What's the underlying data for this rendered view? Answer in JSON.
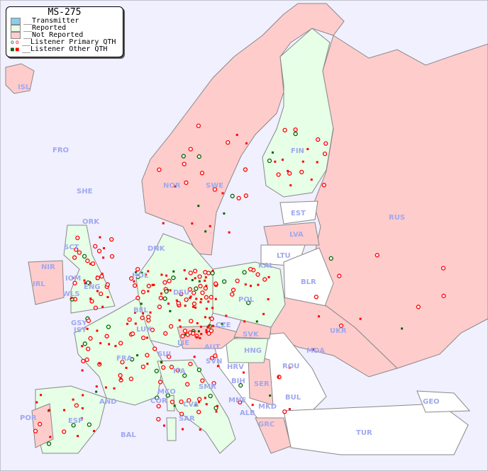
{
  "title": "MS-275",
  "legend": [
    {
      "label": "__Transmitter",
      "color": "#88ccee"
    },
    {
      "label": "__Reported",
      "color": "#e6ffe6"
    },
    {
      "label": "__Not Reported",
      "color": "#ffcccc"
    },
    {
      "label": "__Listener Primary QTH",
      "marker": "ring",
      "colors": [
        "#006600",
        "#ff0000"
      ]
    },
    {
      "label": "__Listener Other QTH",
      "marker": "square",
      "colors": [
        "#006600",
        "#ff0000"
      ]
    }
  ],
  "colors": {
    "sea": "#f0f0ff",
    "reported": "#e6ffe6",
    "not_reported": "#ffcccc",
    "other": "#ffffff",
    "border": "#888888",
    "label": "#a0a8ee"
  },
  "countries": {
    "ISL": "ISL",
    "FRO": "FRO",
    "SHE": "SHE",
    "ORK": "ORK",
    "NOR": "NOR",
    "SWE": "SWE",
    "FIN": "FIN",
    "RUS": "RUS",
    "EST": "EST",
    "LVA": "LVA",
    "LTU": "LTU",
    "KAL": "KAL",
    "BLR": "BLR",
    "UKR": "UKR",
    "DNK": "DNK",
    "SCT": "SCT",
    "NIR": "NIR",
    "IRL": "IRL",
    "IOM": "IOM",
    "WLS": "WLS",
    "ENG": "ENG",
    "HOL": "HOL",
    "BEL": "BEL",
    "LUX": "LUX",
    "DEU": "DEU",
    "POL": "POL",
    "CZE": "CZE",
    "SVK": "SVK",
    "GSY": "GSY",
    "JSY": "JSY",
    "FRA": "FRA",
    "SUI": "SUI",
    "LIE": "LIE",
    "AUT": "AUT",
    "HNG": "HNG",
    "MDA": "MDA",
    "ROU": "ROU",
    "SVN": "SVN",
    "HRV": "HRV",
    "BIH": "BIH",
    "SER": "SER",
    "BUL": "BUL",
    "ITA": "ITA",
    "SMR": "SMR",
    "MCO": "MCO",
    "COR": "COR",
    "CVA": "CVA",
    "MNE": "MNE",
    "ALB": "ALB",
    "MKD": "MKD",
    "GRC": "GRC",
    "TUR": "TUR",
    "GEO": "GEO",
    "AND": "AND",
    "POR": "POR",
    "ESP": "ESP",
    "BAL": "BAL",
    "SAR": "SAR"
  }
}
